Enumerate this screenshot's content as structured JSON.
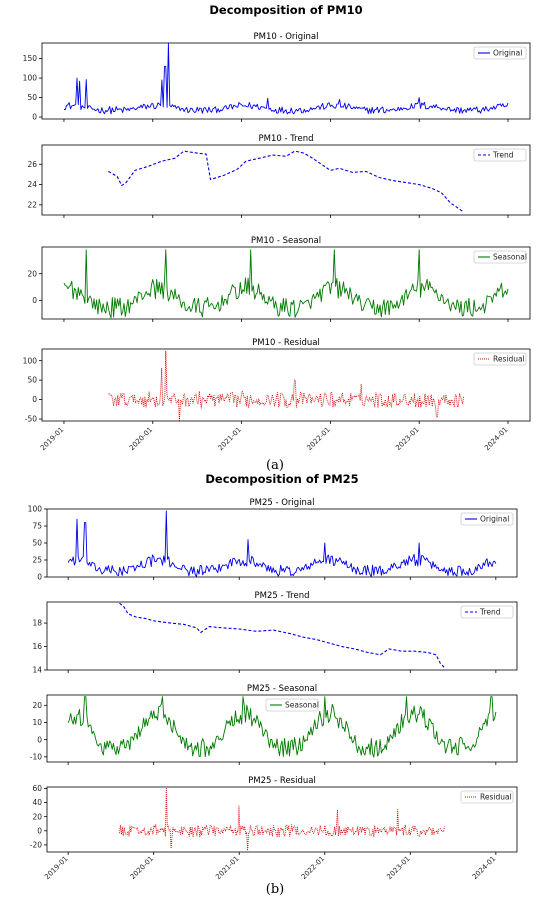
{
  "figure": {
    "captions": [
      "(a)",
      "(b)"
    ]
  },
  "colors": {
    "original": "#0000ee",
    "trend": "#0000ee",
    "seasonal": "#007a00",
    "residual": "#d40000"
  },
  "chart_data": [
    {
      "type": "line",
      "title": "Decomposition of PM10",
      "x_ticks": [
        "2019-01",
        "2020-01",
        "2021-01",
        "2022-01",
        "2023-01",
        "2024-01"
      ],
      "x_range": [
        "2019-01-01",
        "2024-01-01"
      ],
      "panels": [
        {
          "key": "original",
          "title": "PM10 - Original",
          "legend": "Original",
          "legend_position": "upper right",
          "line_style": "solid",
          "ylim": [
            -5,
            190
          ],
          "y_ticks": [
            0,
            50,
            100,
            150
          ],
          "x_start": 0.0,
          "x_end": 1.0,
          "base": 22,
          "amplitude": 7,
          "noise": 10,
          "spikes": [
            [
              0.03,
              100
            ],
            [
              0.035,
              92
            ],
            [
              0.05,
              96
            ],
            [
              0.22,
              95
            ],
            [
              0.23,
              120
            ],
            [
              0.235,
              190
            ],
            [
              0.228,
              130
            ],
            [
              0.46,
              48
            ],
            [
              0.62,
              45
            ],
            [
              0.8,
              50
            ]
          ]
        },
        {
          "key": "trend",
          "title": "PM10 - Trend",
          "legend": "Trend",
          "legend_position": "upper right",
          "line_style": "dashed",
          "ylim": [
            21.0,
            27.9
          ],
          "y_ticks": [
            22,
            24,
            26
          ],
          "x_start": 0.1,
          "x_end": 0.9,
          "points": [
            [
              0.1,
              25.3
            ],
            [
              0.12,
              24.8
            ],
            [
              0.13,
              23.9
            ],
            [
              0.14,
              24.2
            ],
            [
              0.16,
              25.4
            ],
            [
              0.19,
              25.8
            ],
            [
              0.22,
              26.3
            ],
            [
              0.25,
              26.6
            ],
            [
              0.27,
              27.3
            ],
            [
              0.3,
              27.1
            ],
            [
              0.32,
              27.0
            ],
            [
              0.33,
              24.5
            ],
            [
              0.36,
              24.9
            ],
            [
              0.39,
              25.5
            ],
            [
              0.41,
              26.3
            ],
            [
              0.44,
              26.6
            ],
            [
              0.47,
              26.9
            ],
            [
              0.5,
              26.8
            ],
            [
              0.52,
              27.3
            ],
            [
              0.54,
              27.1
            ],
            [
              0.56,
              26.6
            ],
            [
              0.58,
              26.0
            ],
            [
              0.6,
              25.4
            ],
            [
              0.62,
              25.6
            ],
            [
              0.65,
              25.2
            ],
            [
              0.68,
              25.3
            ],
            [
              0.71,
              24.7
            ],
            [
              0.74,
              24.4
            ],
            [
              0.77,
              24.2
            ],
            [
              0.8,
              24.0
            ],
            [
              0.83,
              23.6
            ],
            [
              0.85,
              23.2
            ],
            [
              0.87,
              22.2
            ],
            [
              0.89,
              21.6
            ],
            [
              0.9,
              21.3
            ]
          ]
        },
        {
          "key": "seasonal",
          "title": "PM10 - Seasonal",
          "legend": "Seasonal",
          "legend_position": "upper right",
          "line_style": "solid",
          "ylim": [
            -14,
            40
          ],
          "y_ticks": [
            0,
            20
          ],
          "x_start": 0.0,
          "x_end": 1.0,
          "base": 0,
          "amplitude": 9,
          "noise": 8,
          "spikes": [
            [
              0.05,
              38
            ],
            [
              0.23,
              38
            ],
            [
              0.42,
              38
            ],
            [
              0.61,
              38
            ],
            [
              0.8,
              38
            ]
          ]
        },
        {
          "key": "residual",
          "title": "PM10 - Residual",
          "legend": "Residual",
          "legend_position": "upper right",
          "line_style": "dotted",
          "ylim": [
            -55,
            130
          ],
          "y_ticks": [
            -50,
            0,
            50,
            100
          ],
          "x_start": 0.1,
          "x_end": 0.9,
          "base": 0,
          "amplitude": 0,
          "noise": 22,
          "spikes": [
            [
              0.22,
              80
            ],
            [
              0.23,
              125
            ],
            [
              0.26,
              -60
            ],
            [
              0.52,
              50
            ],
            [
              0.67,
              40
            ],
            [
              0.84,
              -45
            ]
          ]
        }
      ]
    },
    {
      "type": "line",
      "title": "Decomposition of PM25",
      "x_ticks": [
        "2019-01",
        "2020-01",
        "2021-01",
        "2022-01",
        "2023-01",
        "2024-01"
      ],
      "x_range": [
        "2019-01-01",
        "2024-01-01"
      ],
      "panels": [
        {
          "key": "original",
          "title": "PM25 - Original",
          "legend": "Original",
          "legend_position": "upper right",
          "line_style": "solid",
          "ylim": [
            0,
            100
          ],
          "y_ticks": [
            0,
            25,
            50,
            75,
            100
          ],
          "x_start": 0.0,
          "x_end": 1.0,
          "base": 15,
          "amplitude": 10,
          "noise": 9,
          "spikes": [
            [
              0.02,
              85
            ],
            [
              0.04,
              80
            ],
            [
              0.23,
              97
            ],
            [
              0.42,
              55
            ],
            [
              0.6,
              50
            ],
            [
              0.82,
              50
            ]
          ]
        },
        {
          "key": "trend",
          "title": "PM25 - Trend",
          "legend": "Trend",
          "legend_position": "upper right",
          "line_style": "dashed",
          "ylim": [
            14,
            19.8
          ],
          "y_ticks": [
            14,
            16,
            18
          ],
          "x_start": 0.12,
          "x_end": 0.88,
          "points": [
            [
              0.12,
              19.7
            ],
            [
              0.13,
              19.4
            ],
            [
              0.14,
              18.8
            ],
            [
              0.16,
              18.5
            ],
            [
              0.18,
              18.4
            ],
            [
              0.2,
              18.2
            ],
            [
              0.24,
              18.0
            ],
            [
              0.27,
              17.9
            ],
            [
              0.3,
              17.6
            ],
            [
              0.31,
              17.2
            ],
            [
              0.33,
              17.7
            ],
            [
              0.36,
              17.6
            ],
            [
              0.4,
              17.5
            ],
            [
              0.44,
              17.3
            ],
            [
              0.48,
              17.4
            ],
            [
              0.52,
              17.1
            ],
            [
              0.55,
              16.8
            ],
            [
              0.58,
              16.6
            ],
            [
              0.61,
              16.3
            ],
            [
              0.64,
              16.0
            ],
            [
              0.67,
              15.8
            ],
            [
              0.7,
              15.5
            ],
            [
              0.73,
              15.3
            ],
            [
              0.75,
              15.8
            ],
            [
              0.78,
              15.6
            ],
            [
              0.81,
              15.6
            ],
            [
              0.84,
              15.5
            ],
            [
              0.86,
              15.3
            ],
            [
              0.87,
              14.6
            ],
            [
              0.88,
              14.2
            ]
          ]
        },
        {
          "key": "seasonal",
          "title": "PM25 - Seasonal",
          "legend": "Seasonal",
          "legend_position": "upper center",
          "line_style": "solid",
          "ylim": [
            -13,
            26
          ],
          "y_ticks": [
            -10,
            0,
            10,
            20
          ],
          "x_start": 0.0,
          "x_end": 1.0,
          "base": 3,
          "amplitude": 12,
          "noise": 6,
          "spikes": [
            [
              0.04,
              25
            ],
            [
              0.22,
              25
            ],
            [
              0.41,
              25
            ],
            [
              0.6,
              25
            ],
            [
              0.79,
              25
            ],
            [
              0.99,
              25
            ]
          ]
        },
        {
          "key": "residual",
          "title": "PM25 - Residual",
          "legend": "Residual",
          "legend_position": "upper right",
          "line_style": "dotted",
          "ylim": [
            -30,
            62
          ],
          "y_ticks": [
            -20,
            0,
            20,
            40,
            60
          ],
          "x_start": 0.12,
          "x_end": 0.88,
          "base": 0,
          "amplitude": 0,
          "noise": 9,
          "spikes": [
            [
              0.23,
              60
            ],
            [
              0.24,
              -25
            ],
            [
              0.4,
              35
            ],
            [
              0.42,
              -28
            ],
            [
              0.63,
              30
            ],
            [
              0.77,
              30
            ]
          ]
        }
      ]
    }
  ]
}
